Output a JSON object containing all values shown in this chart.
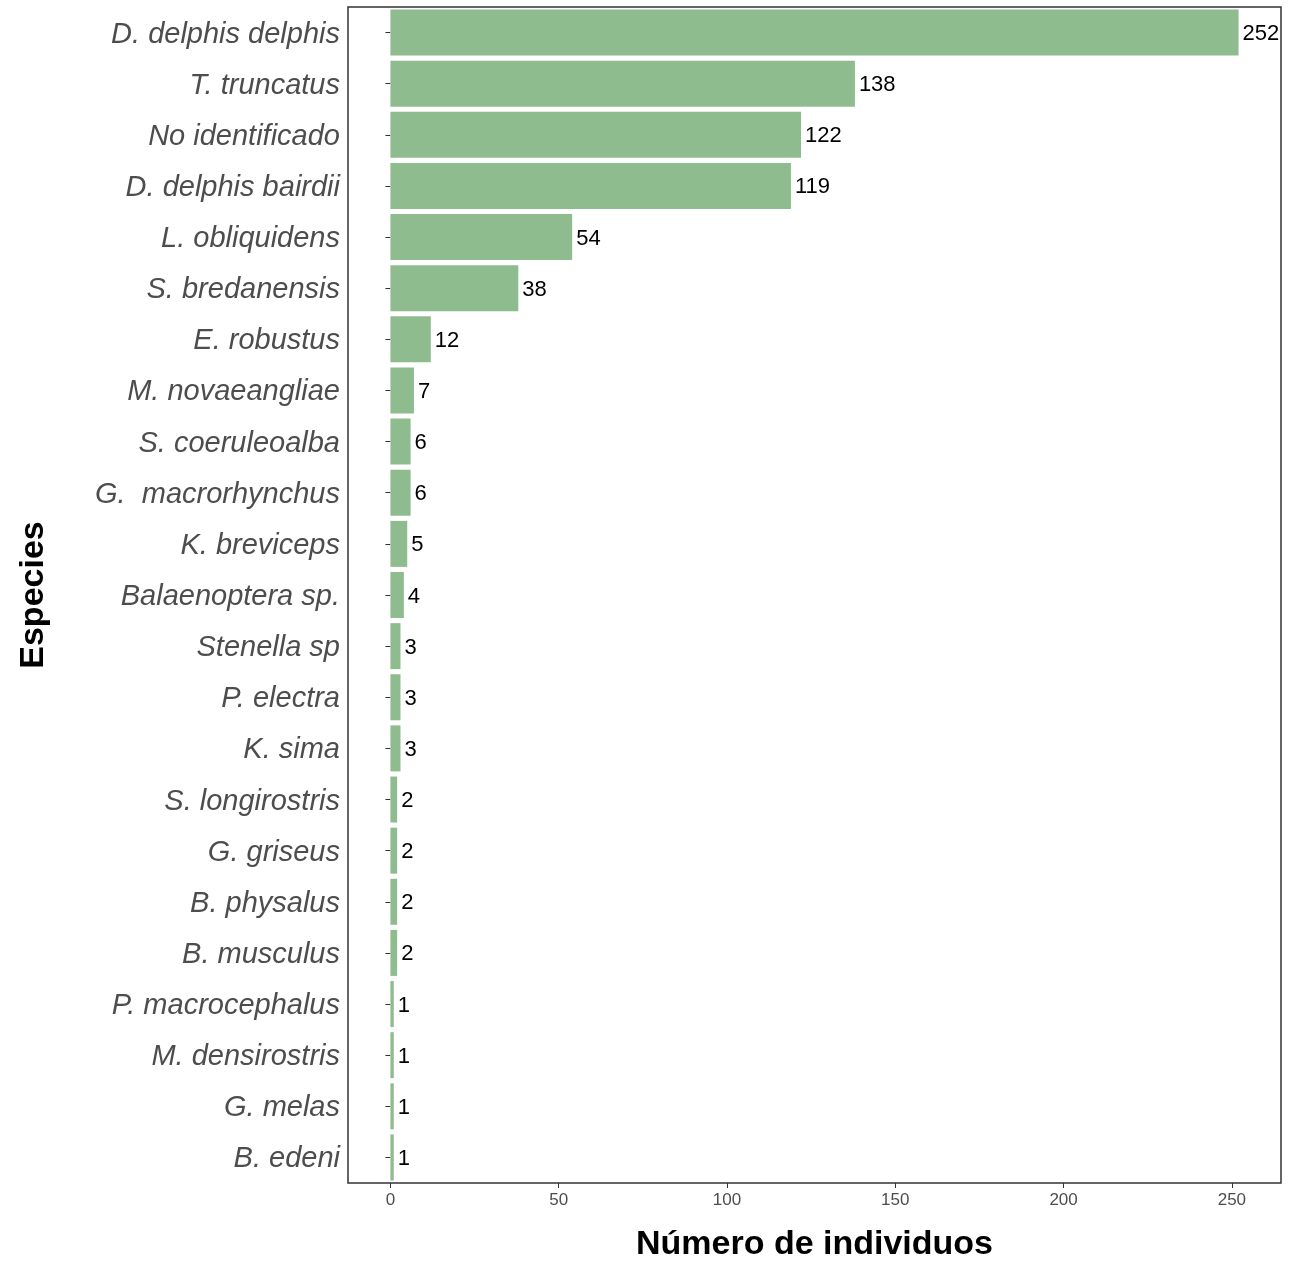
{
  "chart_data": {
    "type": "bar",
    "orientation": "horizontal",
    "xlabel": "Número de individuos",
    "ylabel": "Especies",
    "categories": [
      "D. delphis delphis",
      "T. truncatus",
      "No identificado",
      "D. delphis bairdii",
      "L. obliquidens",
      "S. bredanensis",
      "E. robustus",
      "M. novaeangliae",
      "S. coeruleoalba",
      "G.  macrorhynchus",
      "K. breviceps",
      "Balaenoptera sp.",
      "Stenella sp",
      "P. electra",
      "K. sima",
      "S. longirostris",
      "G. griseus",
      "B. physalus",
      "B. musculus",
      "P. macrocephalus",
      "M. densirostris",
      "G. melas",
      "B. edeni"
    ],
    "values": [
      252,
      138,
      122,
      119,
      54,
      38,
      12,
      7,
      6,
      6,
      5,
      4,
      3,
      3,
      3,
      2,
      2,
      2,
      2,
      1,
      1,
      1,
      1
    ],
    "color": "#8fbc8f",
    "data_labels": true,
    "xlim": [
      -12.6,
      264.6
    ],
    "xticks": [
      0,
      50,
      100,
      150,
      200,
      250
    ]
  }
}
